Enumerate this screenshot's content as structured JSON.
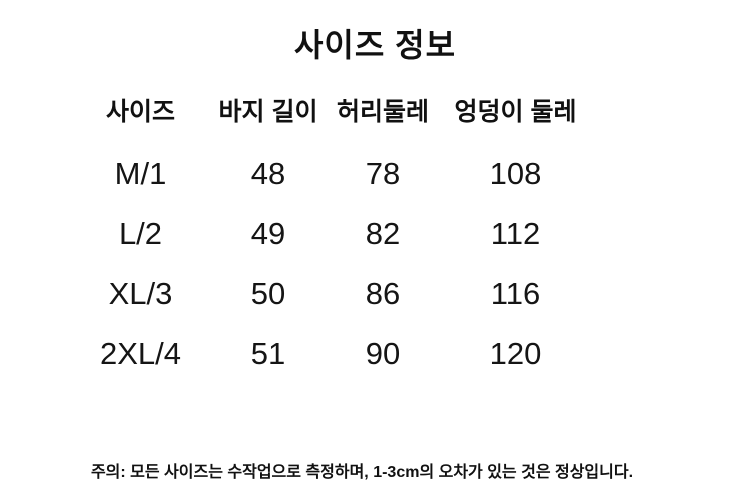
{
  "title": "사이즈 정보",
  "table": {
    "headers": [
      "사이즈",
      "바지 길이",
      "허리둘레",
      "엉덩이 둘레"
    ],
    "rows": [
      [
        "M/1",
        "48",
        "78",
        "108"
      ],
      [
        "L/2",
        "49",
        "82",
        "112"
      ],
      [
        "XL/3",
        "50",
        "86",
        "116"
      ],
      [
        "2XL/4",
        "51",
        "90",
        "120"
      ]
    ]
  },
  "footnote": "주의: 모든 사이즈는 수작업으로 측정하며, 1-3cm의 오차가 있는 것은 정상입니다.",
  "colors": {
    "text": "#111111",
    "background": "#ffffff"
  }
}
